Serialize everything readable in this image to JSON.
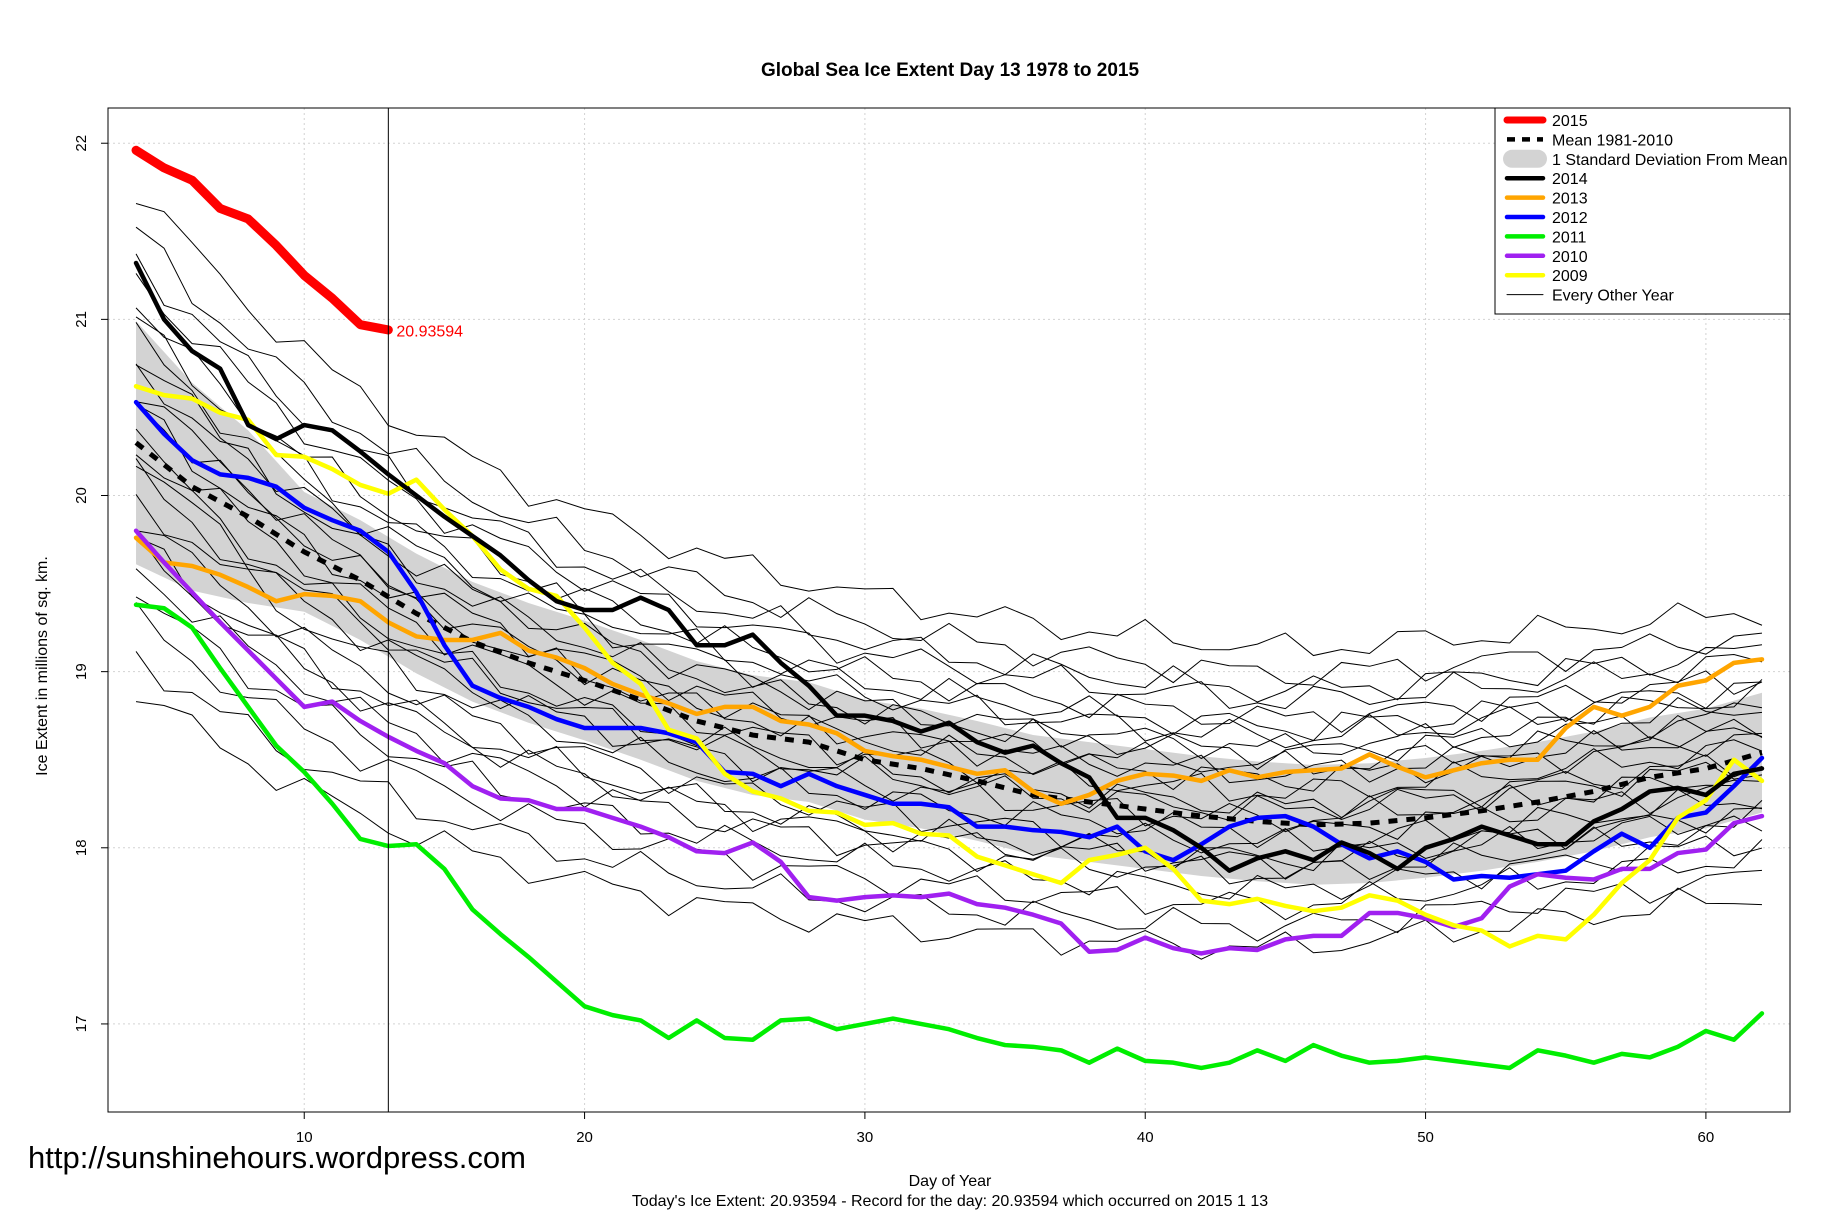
{
  "chart_data": {
    "type": "line",
    "title": "Global Sea Ice Extent Day 13 1978 to 2015",
    "xlabel": "Day of Year",
    "ylabel": "Ice Extent in millions of sq. km.",
    "caption": "Today's Ice Extent: 20.93594  - Record for the day: 20.93594 which occurred on 2015 1 13",
    "xlim": [
      3,
      63
    ],
    "ylim": [
      16.5,
      22.2
    ],
    "x_ticks": [
      10,
      20,
      30,
      40,
      50,
      60
    ],
    "y_ticks": [
      17,
      18,
      19,
      20,
      21,
      22
    ],
    "grid": true,
    "vline_x": 13,
    "annotation": {
      "text": "20.93594",
      "x": 13,
      "y": 20.93594
    },
    "legend_position": "top-right",
    "legend": [
      {
        "label": "2015",
        "color": "#ff0000",
        "style": "solid-thick"
      },
      {
        "label": "Mean 1981-2010",
        "color": "#000000",
        "style": "dashed"
      },
      {
        "label": "1 Standard Deviation From Mean",
        "color": "#d3d3d3",
        "style": "band"
      },
      {
        "label": "2014",
        "color": "#000000",
        "style": "solid"
      },
      {
        "label": "2013",
        "color": "#ffa500",
        "style": "solid"
      },
      {
        "label": "2012",
        "color": "#0000ff",
        "style": "solid"
      },
      {
        "label": "2011",
        "color": "#00ee00",
        "style": "solid"
      },
      {
        "label": "2010",
        "color": "#a020f0",
        "style": "solid"
      },
      {
        "label": "2009",
        "color": "#ffff00",
        "style": "solid"
      },
      {
        "label": "Every Other Year",
        "color": "#000000",
        "style": "thin"
      }
    ],
    "series": [
      {
        "name": "2015",
        "color": "#ff0000",
        "width": 9,
        "x": [
          4,
          5,
          6,
          7,
          8,
          9,
          10,
          11,
          12,
          13
        ],
        "y": [
          21.96,
          21.86,
          21.79,
          21.63,
          21.57,
          21.42,
          21.25,
          21.12,
          20.97,
          20.94
        ]
      },
      {
        "name": "Mean 1981-2010",
        "color": "#000000",
        "width": 5,
        "dash": "9,9",
        "x": [
          4,
          6,
          8,
          10,
          12,
          14,
          16,
          18,
          20,
          22,
          24,
          26,
          28,
          30,
          32,
          34,
          36,
          38,
          40,
          42,
          44,
          46,
          48,
          50,
          52,
          54,
          56,
          58,
          60,
          62
        ],
        "y": [
          20.3,
          20.05,
          19.88,
          19.68,
          19.52,
          19.33,
          19.17,
          19.05,
          18.95,
          18.84,
          18.72,
          18.64,
          18.6,
          18.5,
          18.45,
          18.38,
          18.3,
          18.26,
          18.22,
          18.18,
          18.15,
          18.13,
          18.14,
          18.17,
          18.21,
          18.26,
          18.32,
          18.4,
          18.45,
          18.54
        ]
      },
      {
        "name": "2014",
        "color": "#000000",
        "width": 4.5,
        "x": [
          4,
          5,
          6,
          7,
          8,
          9,
          10,
          11,
          12,
          13,
          14,
          15,
          16,
          17,
          18,
          19,
          20,
          21,
          22,
          23,
          24,
          25,
          26,
          27,
          28,
          29,
          30,
          31,
          32,
          33,
          34,
          35,
          36,
          37,
          38,
          39,
          40,
          41,
          42,
          43,
          44,
          45,
          46,
          47,
          48,
          49,
          50,
          51,
          52,
          53,
          54,
          55,
          56,
          57,
          58,
          59,
          60,
          61,
          62
        ],
        "y": [
          21.32,
          21.0,
          20.82,
          20.72,
          20.4,
          20.32,
          20.4,
          20.37,
          20.25,
          20.12,
          20.0,
          19.88,
          19.77,
          19.66,
          19.52,
          19.4,
          19.35,
          19.35,
          19.42,
          19.35,
          19.15,
          19.15,
          19.21,
          19.05,
          18.92,
          18.75,
          18.75,
          18.72,
          18.66,
          18.71,
          18.6,
          18.54,
          18.58,
          18.48,
          18.4,
          18.17,
          18.17,
          18.1,
          18.0,
          17.87,
          17.94,
          17.98,
          17.93,
          18.03,
          17.97,
          17.88,
          18.0,
          18.05,
          18.12,
          18.07,
          18.02,
          18.02,
          18.15,
          18.22,
          18.32,
          18.34,
          18.3,
          18.42,
          18.45
        ]
      },
      {
        "name": "2013",
        "color": "#ffa500",
        "width": 4.5,
        "x": [
          4,
          5,
          6,
          7,
          8,
          9,
          10,
          11,
          12,
          13,
          14,
          15,
          16,
          17,
          18,
          19,
          20,
          21,
          22,
          23,
          24,
          25,
          26,
          27,
          28,
          29,
          30,
          31,
          32,
          33,
          34,
          35,
          36,
          37,
          38,
          39,
          40,
          41,
          42,
          43,
          44,
          45,
          46,
          47,
          48,
          49,
          50,
          51,
          52,
          53,
          54,
          55,
          56,
          57,
          58,
          59,
          60,
          61,
          62
        ],
        "y": [
          19.76,
          19.62,
          19.6,
          19.55,
          19.48,
          19.4,
          19.44,
          19.43,
          19.4,
          19.28,
          19.2,
          19.18,
          19.18,
          19.22,
          19.12,
          19.08,
          19.02,
          18.93,
          18.87,
          18.82,
          18.76,
          18.8,
          18.8,
          18.72,
          18.7,
          18.65,
          18.55,
          18.52,
          18.5,
          18.46,
          18.42,
          18.44,
          18.32,
          18.25,
          18.3,
          18.38,
          18.42,
          18.41,
          18.38,
          18.44,
          18.4,
          18.43,
          18.44,
          18.45,
          18.53,
          18.46,
          18.4,
          18.44,
          18.48,
          18.5,
          18.5,
          18.68,
          18.8,
          18.75,
          18.8,
          18.92,
          18.95,
          19.05,
          19.07
        ]
      },
      {
        "name": "2012",
        "color": "#0000ff",
        "width": 4.5,
        "x": [
          4,
          5,
          6,
          7,
          8,
          9,
          10,
          11,
          12,
          13,
          14,
          15,
          16,
          17,
          18,
          19,
          20,
          21,
          22,
          23,
          24,
          25,
          26,
          27,
          28,
          29,
          30,
          31,
          32,
          33,
          34,
          35,
          36,
          37,
          38,
          39,
          40,
          41,
          42,
          43,
          44,
          45,
          46,
          47,
          48,
          49,
          50,
          51,
          52,
          53,
          54,
          55,
          56,
          57,
          58,
          59,
          60,
          61,
          62
        ],
        "y": [
          20.53,
          20.35,
          20.2,
          20.12,
          20.1,
          20.05,
          19.93,
          19.86,
          19.8,
          19.68,
          19.45,
          19.15,
          18.92,
          18.85,
          18.8,
          18.73,
          18.68,
          18.68,
          18.68,
          18.65,
          18.6,
          18.43,
          18.42,
          18.35,
          18.42,
          18.35,
          18.3,
          18.25,
          18.25,
          18.23,
          18.12,
          18.12,
          18.1,
          18.09,
          18.06,
          18.12,
          17.98,
          17.93,
          18.02,
          18.12,
          18.17,
          18.18,
          18.12,
          18.02,
          17.94,
          17.98,
          17.92,
          17.82,
          17.84,
          17.83,
          17.85,
          17.87,
          17.98,
          18.08,
          18.0,
          18.17,
          18.2,
          18.35,
          18.51
        ]
      },
      {
        "name": "2011",
        "color": "#00ee00",
        "width": 4.5,
        "x": [
          4,
          5,
          6,
          7,
          8,
          9,
          10,
          11,
          12,
          13,
          14,
          15,
          16,
          17,
          18,
          19,
          20,
          21,
          22,
          23,
          24,
          25,
          26,
          27,
          28,
          29,
          30,
          31,
          32,
          33,
          34,
          35,
          36,
          37,
          38,
          39,
          40,
          41,
          42,
          43,
          44,
          45,
          46,
          47,
          48,
          49,
          50,
          51,
          52,
          53,
          54,
          55,
          56,
          57,
          58,
          59,
          60,
          61,
          62
        ],
        "y": [
          19.38,
          19.36,
          19.25,
          19.02,
          18.8,
          18.58,
          18.43,
          18.25,
          18.05,
          18.01,
          18.02,
          17.88,
          17.65,
          17.51,
          17.38,
          17.24,
          17.1,
          17.05,
          17.02,
          16.92,
          17.02,
          16.92,
          16.91,
          17.02,
          17.03,
          16.97,
          17.0,
          17.03,
          17.0,
          16.97,
          16.92,
          16.88,
          16.87,
          16.85,
          16.78,
          16.86,
          16.79,
          16.78,
          16.75,
          16.78,
          16.85,
          16.79,
          16.88,
          16.82,
          16.78,
          16.79,
          16.81,
          16.79,
          16.77,
          16.75,
          16.85,
          16.82,
          16.78,
          16.83,
          16.81,
          16.87,
          16.96,
          16.91,
          17.06
        ]
      },
      {
        "name": "2010",
        "color": "#a020f0",
        "width": 4.5,
        "x": [
          4,
          5,
          6,
          7,
          8,
          9,
          10,
          11,
          12,
          13,
          14,
          15,
          16,
          17,
          18,
          19,
          20,
          21,
          22,
          23,
          24,
          25,
          26,
          27,
          28,
          29,
          30,
          31,
          32,
          33,
          34,
          35,
          36,
          37,
          38,
          39,
          40,
          41,
          42,
          43,
          44,
          45,
          46,
          47,
          48,
          49,
          50,
          51,
          52,
          53,
          54,
          55,
          56,
          57,
          58,
          59,
          60,
          61,
          62
        ],
        "y": [
          19.8,
          19.62,
          19.45,
          19.28,
          19.12,
          18.96,
          18.8,
          18.83,
          18.72,
          18.63,
          18.55,
          18.48,
          18.35,
          18.28,
          18.27,
          18.22,
          18.22,
          18.17,
          18.12,
          18.06,
          17.98,
          17.97,
          18.03,
          17.92,
          17.72,
          17.7,
          17.72,
          17.73,
          17.72,
          17.74,
          17.68,
          17.66,
          17.62,
          17.57,
          17.41,
          17.42,
          17.49,
          17.43,
          17.4,
          17.43,
          17.42,
          17.48,
          17.5,
          17.5,
          17.63,
          17.63,
          17.6,
          17.55,
          17.6,
          17.78,
          17.85,
          17.83,
          17.82,
          17.88,
          17.88,
          17.97,
          17.99,
          18.14,
          18.18
        ]
      },
      {
        "name": "2009",
        "color": "#ffff00",
        "width": 4.5,
        "x": [
          4,
          5,
          6,
          7,
          8,
          9,
          10,
          11,
          12,
          13,
          14,
          15,
          16,
          17,
          18,
          19,
          20,
          21,
          22,
          23,
          24,
          25,
          26,
          27,
          28,
          29,
          30,
          31,
          32,
          33,
          34,
          35,
          36,
          37,
          38,
          39,
          40,
          41,
          42,
          43,
          44,
          45,
          46,
          47,
          48,
          49,
          50,
          51,
          52,
          53,
          54,
          55,
          56,
          57,
          58,
          59,
          60,
          61,
          62
        ],
        "y": [
          20.62,
          20.57,
          20.55,
          20.47,
          20.43,
          20.23,
          20.22,
          20.15,
          20.06,
          20.01,
          20.09,
          19.92,
          19.77,
          19.58,
          19.47,
          19.43,
          19.25,
          19.05,
          18.93,
          18.67,
          18.62,
          18.42,
          18.32,
          18.28,
          18.21,
          18.2,
          18.13,
          18.14,
          18.08,
          18.07,
          17.95,
          17.9,
          17.85,
          17.8,
          17.93,
          17.96,
          18.0,
          17.88,
          17.7,
          17.68,
          17.71,
          17.67,
          17.64,
          17.66,
          17.73,
          17.7,
          17.62,
          17.56,
          17.53,
          17.44,
          17.5,
          17.48,
          17.62,
          17.8,
          17.93,
          18.17,
          18.27,
          18.5,
          18.38
        ]
      }
    ]
  }
}
